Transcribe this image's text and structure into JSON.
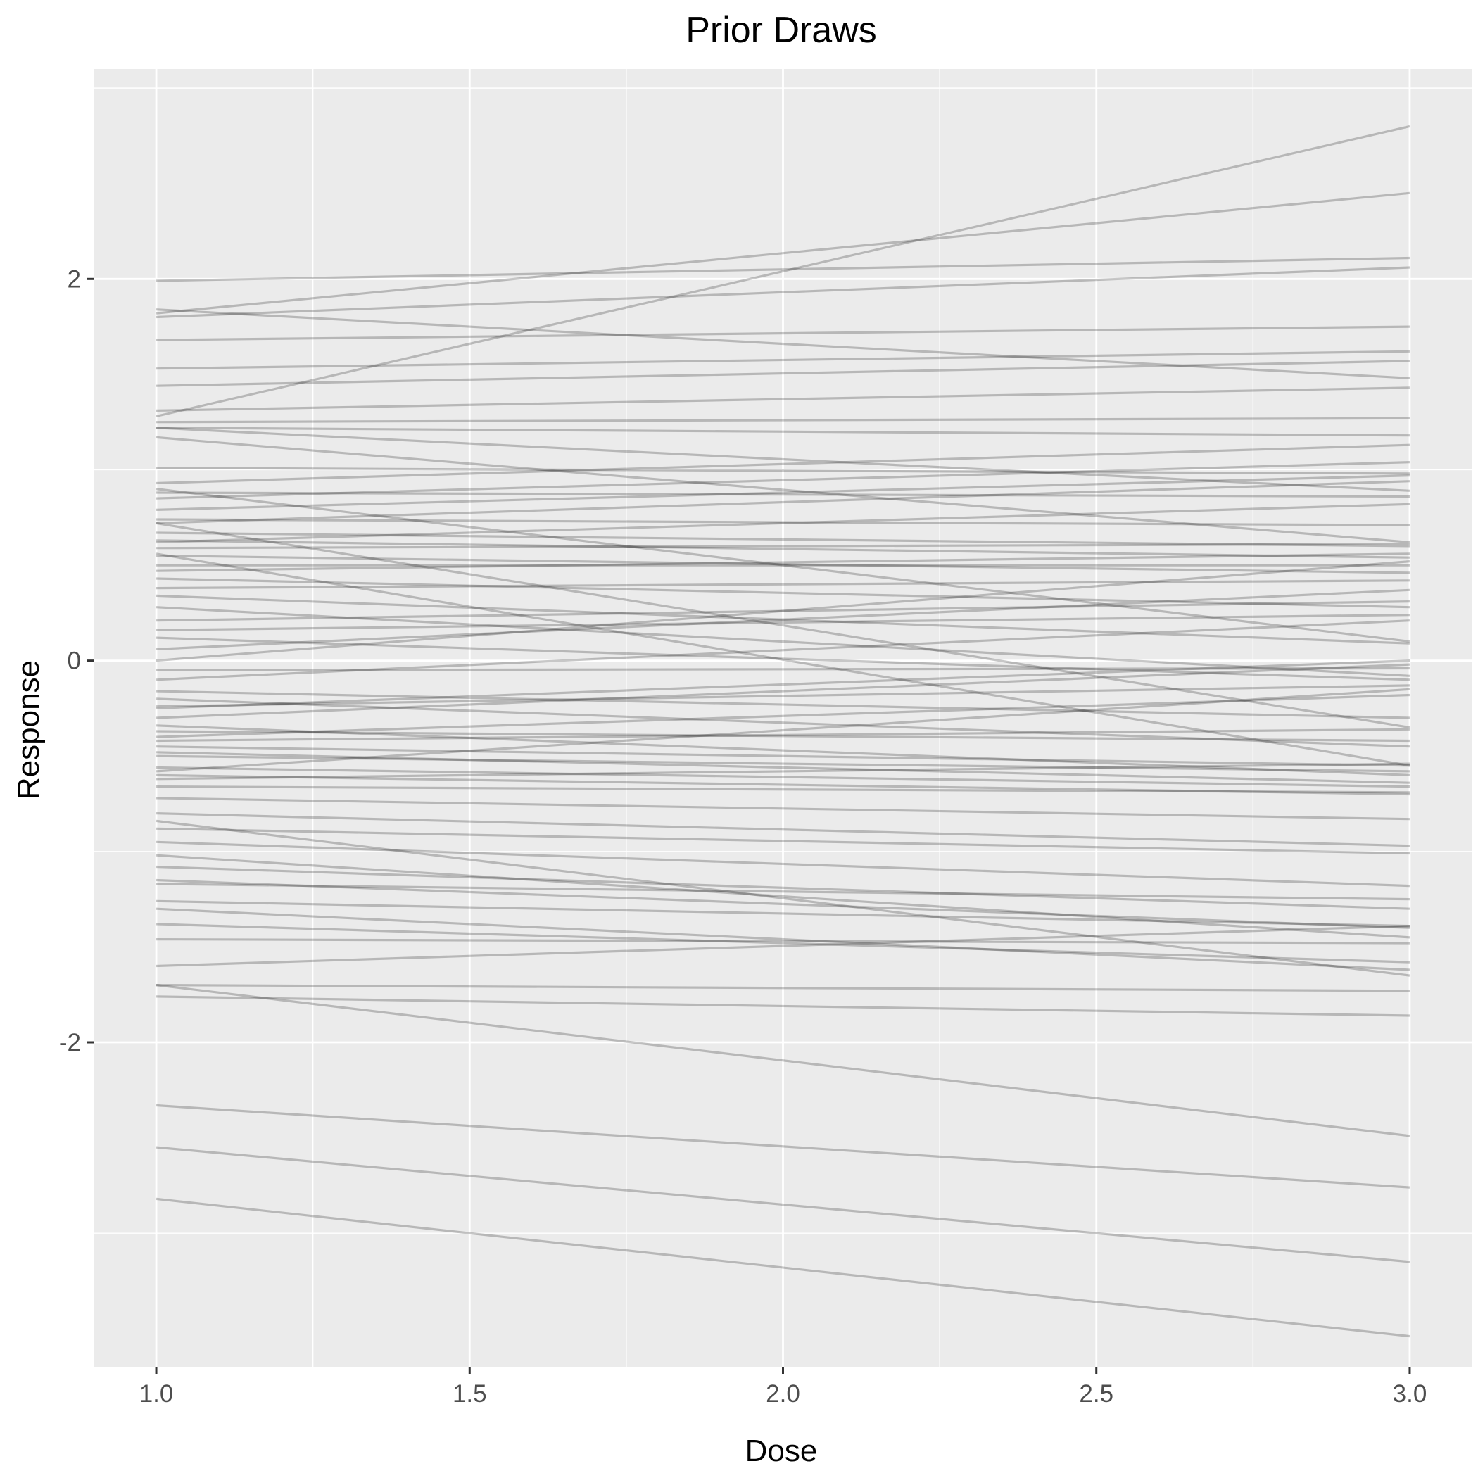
{
  "chart_data": {
    "type": "line",
    "title": "Prior Draws",
    "xlabel": "Dose",
    "ylabel": "Response",
    "xlim": [
      0.9,
      3.1
    ],
    "ylim": [
      -3.7,
      3.1
    ],
    "x_ticks": [
      1.0,
      1.5,
      2.0,
      2.5,
      3.0
    ],
    "x_tick_labels": [
      "1.0",
      "1.5",
      "2.0",
      "2.5",
      "3.0"
    ],
    "y_ticks": [
      -2,
      0,
      2
    ],
    "y_tick_labels": [
      "-2",
      "0",
      "2"
    ],
    "grid": true,
    "legend": "none",
    "colors": {
      "panel": "#ebebeb",
      "grid": "#ffffff",
      "line": "#000000",
      "line_opacity": 0.22
    },
    "series": [
      {
        "x": [
          1,
          3
        ],
        "y": [
          1.28,
          2.8
        ]
      },
      {
        "x": [
          1,
          3
        ],
        "y": [
          1.82,
          2.45
        ]
      },
      {
        "x": [
          1,
          3
        ],
        "y": [
          1.99,
          2.11
        ]
      },
      {
        "x": [
          1,
          3
        ],
        "y": [
          1.8,
          2.06
        ]
      },
      {
        "x": [
          1,
          3
        ],
        "y": [
          1.84,
          1.48
        ]
      },
      {
        "x": [
          1,
          3
        ],
        "y": [
          1.68,
          1.75
        ]
      },
      {
        "x": [
          1,
          3
        ],
        "y": [
          1.53,
          1.62
        ]
      },
      {
        "x": [
          1,
          3
        ],
        "y": [
          1.44,
          1.57
        ]
      },
      {
        "x": [
          1,
          3
        ],
        "y": [
          1.31,
          1.43
        ]
      },
      {
        "x": [
          1,
          3
        ],
        "y": [
          1.25,
          1.27
        ]
      },
      {
        "x": [
          1,
          3
        ],
        "y": [
          1.22,
          1.18
        ]
      },
      {
        "x": [
          1,
          3
        ],
        "y": [
          1.22,
          0.89
        ]
      },
      {
        "x": [
          1,
          3
        ],
        "y": [
          1.01,
          0.98
        ]
      },
      {
        "x": [
          1,
          3
        ],
        "y": [
          0.93,
          1.13
        ]
      },
      {
        "x": [
          1,
          3
        ],
        "y": [
          0.85,
          1.04
        ]
      },
      {
        "x": [
          1,
          3
        ],
        "y": [
          0.74,
          0.71
        ]
      },
      {
        "x": [
          1,
          3
        ],
        "y": [
          0.72,
          0.94
        ]
      },
      {
        "x": [
          1,
          3
        ],
        "y": [
          0.63,
          0.54
        ]
      },
      {
        "x": [
          1,
          3
        ],
        "y": [
          0.59,
          0.61
        ]
      },
      {
        "x": [
          1,
          3
        ],
        "y": [
          0.55,
          0.46
        ]
      },
      {
        "x": [
          1,
          3
        ],
        "y": [
          0.47,
          0.56
        ]
      },
      {
        "x": [
          1,
          3
        ],
        "y": [
          0.38,
          0.42
        ]
      },
      {
        "x": [
          1,
          3
        ],
        "y": [
          0.34,
          0.09
        ]
      },
      {
        "x": [
          1,
          3
        ],
        "y": [
          0.21,
          0.31
        ]
      },
      {
        "x": [
          1,
          3
        ],
        "y": [
          0.16,
          0.24
        ]
      },
      {
        "x": [
          1,
          3
        ],
        "y": [
          0.12,
          -0.1
        ]
      },
      {
        "x": [
          1,
          3
        ],
        "y": [
          0.06,
          0.37
        ]
      },
      {
        "x": [
          1,
          3
        ],
        "y": [
          0.0,
          0.52
        ]
      },
      {
        "x": [
          1,
          3
        ],
        "y": [
          -0.1,
          0.21
        ]
      },
      {
        "x": [
          1,
          3
        ],
        "y": [
          -0.16,
          -0.3
        ]
      },
      {
        "x": [
          1,
          3
        ],
        "y": [
          -0.24,
          -0.13
        ]
      },
      {
        "x": [
          1,
          3
        ],
        "y": [
          -0.3,
          -0.02
        ]
      },
      {
        "x": [
          1,
          3
        ],
        "y": [
          -0.37,
          -0.42
        ]
      },
      {
        "x": [
          1,
          3
        ],
        "y": [
          -0.42,
          -0.36
        ]
      },
      {
        "x": [
          1,
          3
        ],
        "y": [
          -0.5,
          -0.58
        ]
      },
      {
        "x": [
          1,
          3
        ],
        "y": [
          -0.56,
          -0.66
        ]
      },
      {
        "x": [
          1,
          3
        ],
        "y": [
          -0.62,
          -0.54
        ]
      },
      {
        "x": [
          1,
          3
        ],
        "y": [
          -0.66,
          -0.69
        ]
      },
      {
        "x": [
          1,
          3
        ],
        "y": [
          -0.72,
          -0.83
        ]
      },
      {
        "x": [
          1,
          3
        ],
        "y": [
          -0.8,
          -0.97
        ]
      },
      {
        "x": [
          1,
          3
        ],
        "y": [
          -0.88,
          -1.01
        ]
      },
      {
        "x": [
          1,
          3
        ],
        "y": [
          -0.95,
          -1.18
        ]
      },
      {
        "x": [
          1,
          3
        ],
        "y": [
          -1.08,
          -1.3
        ]
      },
      {
        "x": [
          1,
          3
        ],
        "y": [
          -1.17,
          -1.25
        ]
      },
      {
        "x": [
          1,
          3
        ],
        "y": [
          -1.26,
          -1.39
        ]
      },
      {
        "x": [
          1,
          3
        ],
        "y": [
          -1.3,
          -1.62
        ]
      },
      {
        "x": [
          1,
          3
        ],
        "y": [
          -1.46,
          -1.48
        ]
      },
      {
        "x": [
          1,
          3
        ],
        "y": [
          -1.6,
          -1.39
        ]
      },
      {
        "x": [
          1,
          3
        ],
        "y": [
          -1.7,
          -1.73
        ]
      },
      {
        "x": [
          1,
          3
        ],
        "y": [
          -1.76,
          -1.86
        ]
      },
      {
        "x": [
          1,
          3
        ],
        "y": [
          -1.7,
          -2.49
        ]
      },
      {
        "x": [
          1,
          3
        ],
        "y": [
          -2.33,
          -2.76
        ]
      },
      {
        "x": [
          1,
          3
        ],
        "y": [
          -2.55,
          -3.15
        ]
      },
      {
        "x": [
          1,
          3
        ],
        "y": [
          -2.82,
          -3.54
        ]
      },
      {
        "x": [
          1,
          3
        ],
        "y": [
          0.88,
          0.86
        ]
      },
      {
        "x": [
          1,
          3
        ],
        "y": [
          0.79,
          0.97
        ]
      },
      {
        "x": [
          1,
          3
        ],
        "y": [
          0.67,
          0.6
        ]
      },
      {
        "x": [
          1,
          3
        ],
        "y": [
          0.5,
          0.5
        ]
      },
      {
        "x": [
          1,
          3
        ],
        "y": [
          0.43,
          0.28
        ]
      },
      {
        "x": [
          1,
          3
        ],
        "y": [
          0.28,
          -0.08
        ]
      },
      {
        "x": [
          1,
          3
        ],
        "y": [
          -0.05,
          -0.04
        ]
      },
      {
        "x": [
          1,
          3
        ],
        "y": [
          -0.2,
          -0.45
        ]
      },
      {
        "x": [
          1,
          3
        ],
        "y": [
          -0.45,
          -0.55
        ]
      },
      {
        "x": [
          1,
          3
        ],
        "y": [
          -0.48,
          -0.64
        ]
      },
      {
        "x": [
          1,
          3
        ],
        "y": [
          -0.6,
          -0.7
        ]
      },
      {
        "x": [
          1,
          3
        ],
        "y": [
          -1.15,
          -1.4
        ]
      },
      {
        "x": [
          1,
          3
        ],
        "y": [
          -0.84,
          -1.65
        ]
      },
      {
        "x": [
          1,
          3
        ],
        "y": [
          -1.38,
          -1.58
        ]
      },
      {
        "x": [
          1,
          3
        ],
        "y": [
          -1.02,
          -1.45
        ]
      },
      {
        "x": [
          1,
          3
        ],
        "y": [
          -0.4,
          -0.18
        ]
      },
      {
        "x": [
          1,
          3
        ],
        "y": [
          0.56,
          -0.55
        ]
      },
      {
        "x": [
          1,
          3
        ],
        "y": [
          0.72,
          -0.35
        ]
      },
      {
        "x": [
          1,
          3
        ],
        "y": [
          1.17,
          0.62
        ]
      },
      {
        "x": [
          1,
          3
        ],
        "y": [
          0.9,
          0.1
        ]
      },
      {
        "x": [
          1,
          3
        ],
        "y": [
          0.62,
          0.82
        ]
      },
      {
        "x": [
          1,
          3
        ],
        "y": [
          -0.25,
          0.0
        ]
      },
      {
        "x": [
          1,
          3
        ],
        "y": [
          -0.58,
          -0.15
        ]
      },
      {
        "x": [
          1,
          3
        ],
        "y": [
          -0.34,
          -0.6
        ]
      }
    ]
  }
}
